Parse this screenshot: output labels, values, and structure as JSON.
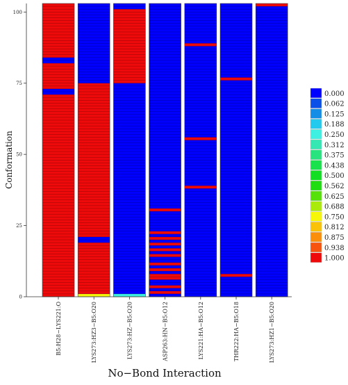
{
  "chart_data": {
    "type": "heatmap",
    "title": "",
    "xlabel": "No−Bond Interaction",
    "ylabel": "Conformation",
    "ylim": [
      0,
      103
    ],
    "yticks": [
      0,
      25,
      50,
      75,
      100
    ],
    "grid": false,
    "legend_position": "right",
    "categories": [
      "B5:H28−LYS221:O",
      "LYS273:HZ3−B5:O20",
      "LYS273:HZ−B5:O20",
      "ASP263:HN−B5:O12",
      "LYS221:HA−B5:O12",
      "THR222:HA−B5:O18",
      "LYS273:HZ1−B5:O20"
    ],
    "colorscale": [
      {
        "value": "0.000",
        "color": "#0000ff"
      },
      {
        "value": "0.062",
        "color": "#0a4fe8"
      },
      {
        "value": "0.125",
        "color": "#138de6"
      },
      {
        "value": "0.188",
        "color": "#24c9ee"
      },
      {
        "value": "0.250",
        "color": "#3ef0e2"
      },
      {
        "value": "0.312",
        "color": "#35e8b3"
      },
      {
        "value": "0.375",
        "color": "#29e37f"
      },
      {
        "value": "0.438",
        "color": "#19e24d"
      },
      {
        "value": "0.500",
        "color": "#12df23"
      },
      {
        "value": "0.562",
        "color": "#1fdd10"
      },
      {
        "value": "0.625",
        "color": "#56e10a"
      },
      {
        "value": "0.688",
        "color": "#aaeb0b"
      },
      {
        "value": "0.750",
        "color": "#f7f70a"
      },
      {
        "value": "0.812",
        "color": "#fbc20a"
      },
      {
        "value": "0.875",
        "color": "#fb8f0c"
      },
      {
        "value": "0.938",
        "color": "#f6540f"
      },
      {
        "value": "1.000",
        "color": "#ee0a0a"
      }
    ],
    "series": [
      {
        "base_value": 1.0,
        "segments": [
          {
            "from": 71,
            "to": 73,
            "value": 0.0
          },
          {
            "from": 82,
            "to": 84,
            "value": 0.0
          }
        ]
      },
      {
        "base_value": 0.0,
        "segments": [
          {
            "from": 0,
            "to": 1,
            "value": 0.75
          },
          {
            "from": 1,
            "to": 19,
            "value": 1.0
          },
          {
            "from": 21,
            "to": 75,
            "value": 1.0
          }
        ]
      },
      {
        "base_value": 0.0,
        "segments": [
          {
            "from": 0,
            "to": 1,
            "value": 0.25
          },
          {
            "from": 75,
            "to": 101,
            "value": 1.0
          }
        ]
      },
      {
        "base_value": 0.0,
        "segments": [
          {
            "from": 1,
            "to": 2,
            "value": 1.0
          },
          {
            "from": 3,
            "to": 4,
            "value": 1.0
          },
          {
            "from": 6,
            "to": 8,
            "value": 1.0
          },
          {
            "from": 9,
            "to": 10,
            "value": 1.0
          },
          {
            "from": 11,
            "to": 12,
            "value": 1.0
          },
          {
            "from": 14,
            "to": 15,
            "value": 1.0
          },
          {
            "from": 16,
            "to": 17,
            "value": 1.0
          },
          {
            "from": 18,
            "to": 19,
            "value": 1.0
          },
          {
            "from": 20,
            "to": 21,
            "value": 1.0
          },
          {
            "from": 22,
            "to": 23,
            "value": 1.0
          },
          {
            "from": 30,
            "to": 31,
            "value": 1.0
          }
        ]
      },
      {
        "base_value": 0.0,
        "segments": [
          {
            "from": 38,
            "to": 39,
            "value": 1.0
          },
          {
            "from": 55,
            "to": 56,
            "value": 1.0
          },
          {
            "from": 88,
            "to": 89,
            "value": 1.0
          }
        ]
      },
      {
        "base_value": 0.0,
        "segments": [
          {
            "from": 7,
            "to": 8,
            "value": 1.0
          },
          {
            "from": 76,
            "to": 77,
            "value": 1.0
          }
        ]
      },
      {
        "base_value": 0.0,
        "segments": [
          {
            "from": 102,
            "to": 103,
            "value": 1.0
          }
        ]
      }
    ]
  }
}
